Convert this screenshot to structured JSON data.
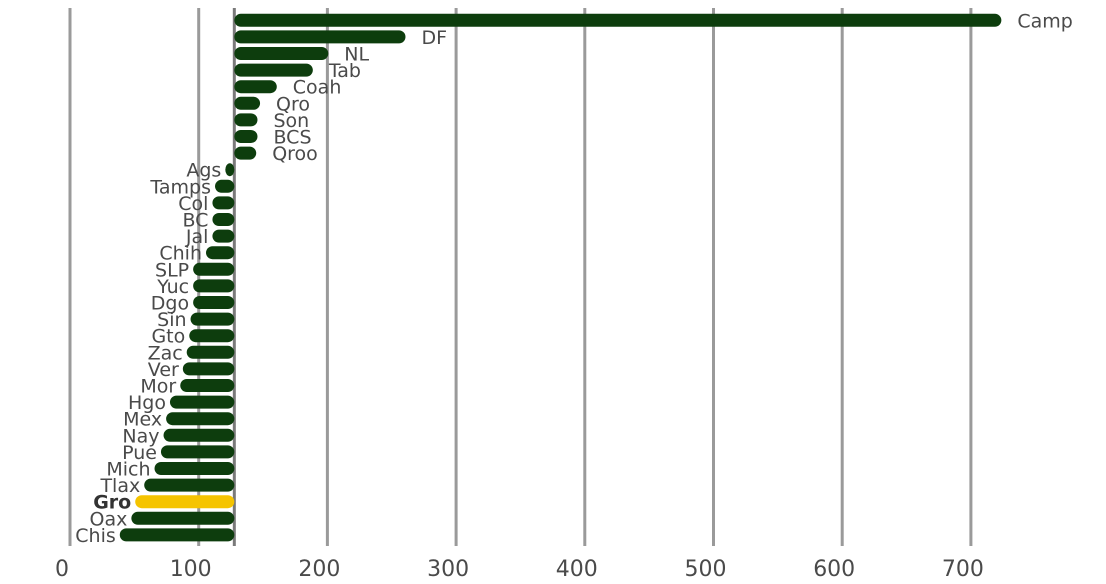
{
  "chart_data": {
    "type": "bar",
    "orientation": "horizontal",
    "title": "",
    "xlabel": "",
    "ylabel": "",
    "baseline": 137,
    "xlim": [
      0,
      735
    ],
    "xticks": [
      0,
      100,
      200,
      300,
      400,
      500,
      600,
      700
    ],
    "grid": "vertical",
    "bar_color": "#0d3d0d",
    "highlight_color": "#f5c400",
    "grid_color": "#9a9a9a",
    "categories": [
      "Camp",
      "DF",
      "NL",
      "Tab",
      "Coah",
      "Qro",
      "Son",
      "BCS",
      "Qroo",
      "Ags",
      "Tamps",
      "Col",
      "BC",
      "Jal",
      "Chih",
      "SLP",
      "Yuc",
      "Dgo",
      "Sin",
      "Gto",
      "Zac",
      "Ver",
      "Mor",
      "Hgo",
      "Mex",
      "Nay",
      "Pue",
      "Mich",
      "Tlax",
      "Gro",
      "Oax",
      "Chis"
    ],
    "values": [
      733,
      270,
      210,
      198,
      170,
      157,
      155,
      155,
      154,
      130,
      122,
      120,
      120,
      120,
      115,
      105,
      105,
      105,
      103,
      102,
      100,
      97,
      95,
      87,
      84,
      82,
      80,
      75,
      67,
      60,
      57,
      48
    ],
    "highlight": "Gro"
  }
}
